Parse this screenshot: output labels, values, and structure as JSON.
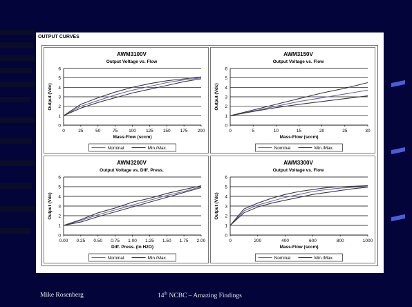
{
  "slide": {
    "panel_title": "OUTPUT CURVES",
    "footer_left": "Mike Rosenberg",
    "footer_sup": "th",
    "footer_center_prefix": "14",
    "footer_center_suffix": " NCBC – Amazing Findings"
  },
  "legend": {
    "nominal": "Nominal",
    "minmax": "Min./Max."
  },
  "colors": {
    "background": "#02043a",
    "nominal": "#6a64b4",
    "minmax": "#3a3a3a",
    "grid": "#000000"
  },
  "chart_data": [
    {
      "type": "line",
      "title": "AWM3100V",
      "subtitle": "Output Voltage vs. Flow",
      "xlabel": "Mass-Flow (sccm)",
      "ylabel": "Output (Vdc)",
      "xlim": [
        0,
        200
      ],
      "ylim": [
        0,
        6
      ],
      "xticks": [
        "0",
        "25",
        "50",
        "75",
        "100",
        "125",
        "150",
        "175",
        "200"
      ],
      "yticks": [
        "0",
        "1",
        "2",
        "3",
        "4",
        "5",
        "6"
      ],
      "x": [
        0,
        25,
        50,
        75,
        100,
        125,
        150,
        175,
        200
      ],
      "series": [
        {
          "name": "Nominal",
          "values": [
            1.0,
            2.0,
            2.6,
            3.2,
            3.7,
            4.1,
            4.5,
            4.8,
            5.0
          ]
        },
        {
          "name": "Min./Max.",
          "values": [
            1.0,
            2.2,
            2.9,
            3.5,
            4.0,
            4.4,
            4.7,
            4.9,
            5.1
          ]
        },
        {
          "name": "Min./Max.",
          "values": [
            1.0,
            1.8,
            2.4,
            2.9,
            3.4,
            3.8,
            4.2,
            4.6,
            4.9
          ]
        }
      ]
    },
    {
      "type": "line",
      "title": "AWM3150V",
      "subtitle": "Output Voltage vs. Flow",
      "xlabel": "Mass-Flow (sccm)",
      "ylabel": "Output (Vdc)",
      "xlim": [
        0,
        30
      ],
      "ylim": [
        0,
        6
      ],
      "xticks": [
        "0",
        "5",
        "10",
        "15",
        "20",
        "25",
        "30"
      ],
      "yticks": [
        "0",
        "1",
        "2",
        "3",
        "4",
        "5",
        "6"
      ],
      "x": [
        0,
        5,
        10,
        15,
        20,
        25,
        30
      ],
      "series": [
        {
          "name": "Nominal",
          "values": [
            1.0,
            1.5,
            2.0,
            2.5,
            2.9,
            3.3,
            3.7
          ]
        },
        {
          "name": "Min./Max.",
          "values": [
            1.0,
            1.6,
            2.2,
            2.8,
            3.4,
            3.9,
            4.5
          ]
        },
        {
          "name": "Min./Max.",
          "values": [
            1.0,
            1.45,
            1.85,
            2.2,
            2.5,
            2.8,
            3.1
          ]
        }
      ]
    },
    {
      "type": "line",
      "title": "AWM3200V",
      "subtitle": "Output Voltage vs. Diff. Press.",
      "xlabel": "Diff. Press. (in H2O)",
      "ylabel": "Output (Vdc)",
      "xlim": [
        0,
        2
      ],
      "ylim": [
        0,
        6
      ],
      "xticks": [
        "0.00",
        "0.25",
        "0.50",
        "0.75",
        "1.00",
        "1.25",
        "1.50",
        "1.75",
        "2.00"
      ],
      "yticks": [
        "0",
        "1",
        "2",
        "3",
        "4",
        "5",
        "6"
      ],
      "x": [
        0,
        0.25,
        0.5,
        0.75,
        1.0,
        1.25,
        1.5,
        1.75,
        2.0
      ],
      "series": [
        {
          "name": "Nominal",
          "values": [
            1.0,
            1.5,
            2.1,
            2.6,
            3.1,
            3.6,
            4.1,
            4.5,
            5.0
          ]
        },
        {
          "name": "Min./Max.",
          "values": [
            1.0,
            1.6,
            2.3,
            2.8,
            3.4,
            3.8,
            4.3,
            4.7,
            5.1
          ]
        },
        {
          "name": "Min./Max.",
          "values": [
            1.0,
            1.35,
            1.9,
            2.4,
            2.9,
            3.4,
            3.9,
            4.4,
            4.9
          ]
        }
      ]
    },
    {
      "type": "line",
      "title": "AWM3300V",
      "subtitle": "Output Voltage vs. Flow",
      "xlabel": "Mass-Flow (sccm)",
      "ylabel": "Output (Vdc)",
      "xlim": [
        0,
        1000
      ],
      "ylim": [
        0,
        6
      ],
      "xticks": [
        "0",
        "200",
        "400",
        "600",
        "800",
        "1000"
      ],
      "yticks": [
        "0",
        "1",
        "2",
        "3",
        "4",
        "5",
        "6"
      ],
      "x": [
        0,
        100,
        200,
        300,
        400,
        500,
        600,
        700,
        800,
        900,
        1000
      ],
      "series": [
        {
          "name": "Nominal",
          "values": [
            1.0,
            2.5,
            3.1,
            3.5,
            3.9,
            4.2,
            4.5,
            4.7,
            4.85,
            4.95,
            5.0
          ]
        },
        {
          "name": "Min./Max.",
          "values": [
            1.0,
            2.7,
            3.3,
            3.8,
            4.2,
            4.5,
            4.7,
            4.9,
            5.0,
            5.05,
            5.1
          ]
        },
        {
          "name": "Min./Max.",
          "values": [
            1.0,
            2.3,
            2.9,
            3.3,
            3.6,
            3.9,
            4.2,
            4.4,
            4.6,
            4.8,
            4.95
          ]
        }
      ]
    }
  ]
}
